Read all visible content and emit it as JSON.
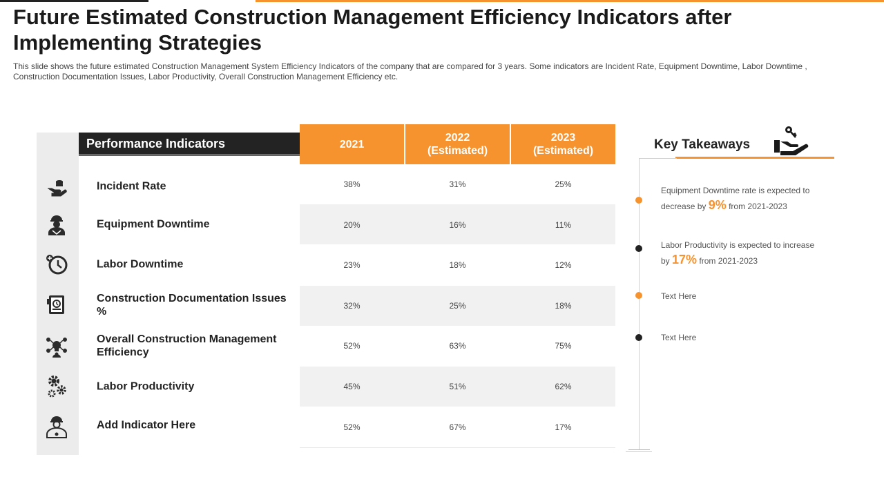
{
  "title": "Future Estimated Construction Management Efficiency Indicators after Implementing Strategies",
  "subtitle": "This slide shows the future estimated Construction Management System Efficiency Indicators of the company that are compared for 3 years. Some indicators are Incident Rate, Equipment Downtime, Labor Downtime , Construction Documentation Issues, Labor Productivity, Overall Construction Management Efficiency etc.",
  "table": {
    "header_label": "Performance Indicators",
    "years": [
      {
        "line1": "2021",
        "line2": ""
      },
      {
        "line1": "2022",
        "line2": "(Estimated)"
      },
      {
        "line1": "2023",
        "line2": "(Estimated)"
      }
    ],
    "rows": [
      {
        "label": "Incident Rate",
        "icon": "coins-hand-icon",
        "values": [
          "38%",
          "31%",
          "25%"
        ]
      },
      {
        "label": "Equipment Downtime",
        "icon": "worker-icon",
        "values": [
          "20%",
          "16%",
          "11%"
        ]
      },
      {
        "label": "Labor Downtime",
        "icon": "clock-history-icon",
        "values": [
          "23%",
          "18%",
          "12%"
        ]
      },
      {
        "label": "Construction Documentation Issues %",
        "icon": "document-icon",
        "values": [
          "32%",
          "25%",
          "18%"
        ]
      },
      {
        "label": "Overall Construction Management Efficiency",
        "icon": "idea-network-icon",
        "values": [
          "52%",
          "63%",
          "75%"
        ]
      },
      {
        "label": "Labor Productivity",
        "icon": "gears-icon",
        "values": [
          "45%",
          "51%",
          "62%"
        ]
      },
      {
        "label": "Add Indicator Here",
        "icon": "engineer-icon",
        "values": [
          "52%",
          "67%",
          "17%"
        ]
      }
    ]
  },
  "takeaways": {
    "title": "Key Takeaways",
    "icon": "key-hand-icon",
    "items": [
      {
        "pre": "Equipment Downtime rate is expected to decrease by ",
        "highlight": "9%",
        "post": " from 2021-2023",
        "dot_color": "#f7932e"
      },
      {
        "pre": "Labor Productivity is expected to increase by ",
        "highlight": "17%",
        "post": " from 2021-2023",
        "dot_color": "#222222"
      },
      {
        "pre": "Text Here",
        "highlight": "",
        "post": "",
        "dot_color": "#f7932e"
      },
      {
        "pre": "Text Here",
        "highlight": "",
        "post": "",
        "dot_color": "#222222"
      }
    ]
  },
  "colors": {
    "accent": "#f7932e",
    "dark": "#232323"
  }
}
